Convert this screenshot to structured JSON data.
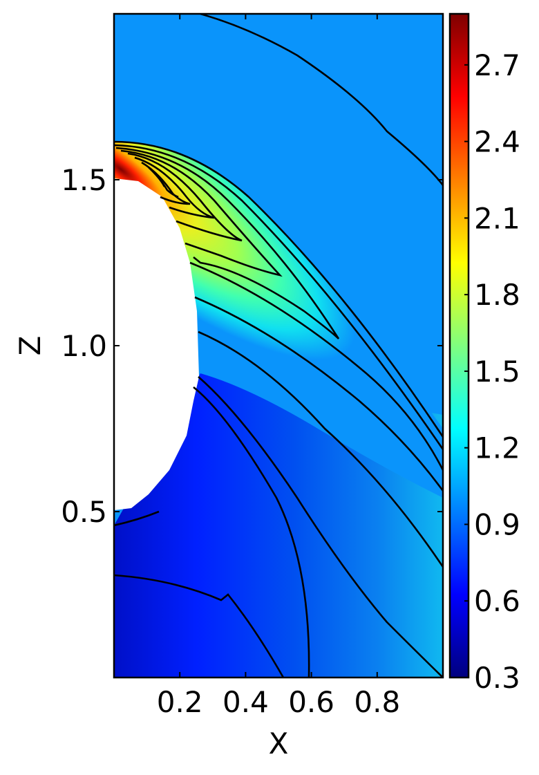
{
  "chart_data": {
    "type": "heatmap",
    "title": "",
    "xlabel": "X",
    "ylabel": "Z",
    "xlim": [
      0.0,
      1.0
    ],
    "ylim": [
      0.0,
      2.0
    ],
    "x_ticks": [
      "0.2",
      "0.4",
      "0.6",
      "0.8"
    ],
    "x_tick_values": [
      0.2,
      0.4,
      0.6,
      0.8
    ],
    "y_ticks": [
      "0.5",
      "1.0",
      "1.5"
    ],
    "y_tick_values": [
      0.5,
      1.0,
      1.5
    ],
    "colorbar": {
      "colormap": "jet",
      "range": [
        0.3,
        2.9
      ],
      "ticks": [
        "0.3",
        "0.6",
        "0.9",
        "1.2",
        "1.5",
        "1.8",
        "2.1",
        "2.4",
        "2.7"
      ],
      "tick_values": [
        0.3,
        0.6,
        0.9,
        1.2,
        1.5,
        1.8,
        2.1,
        2.4,
        2.7
      ]
    },
    "background_value": 1.05,
    "masked_region": "white cavity near X=0 for Z between about 0.5 and 1.5",
    "contour_lines": "black"
  },
  "colors": {
    "jet_stops": [
      "#00007f",
      "#0000ff",
      "#007fff",
      "#00ffff",
      "#7fff7f",
      "#ffff00",
      "#ff7f00",
      "#ff0000",
      "#7f0000"
    ],
    "contour": "#000000",
    "mask": "#ffffff"
  }
}
